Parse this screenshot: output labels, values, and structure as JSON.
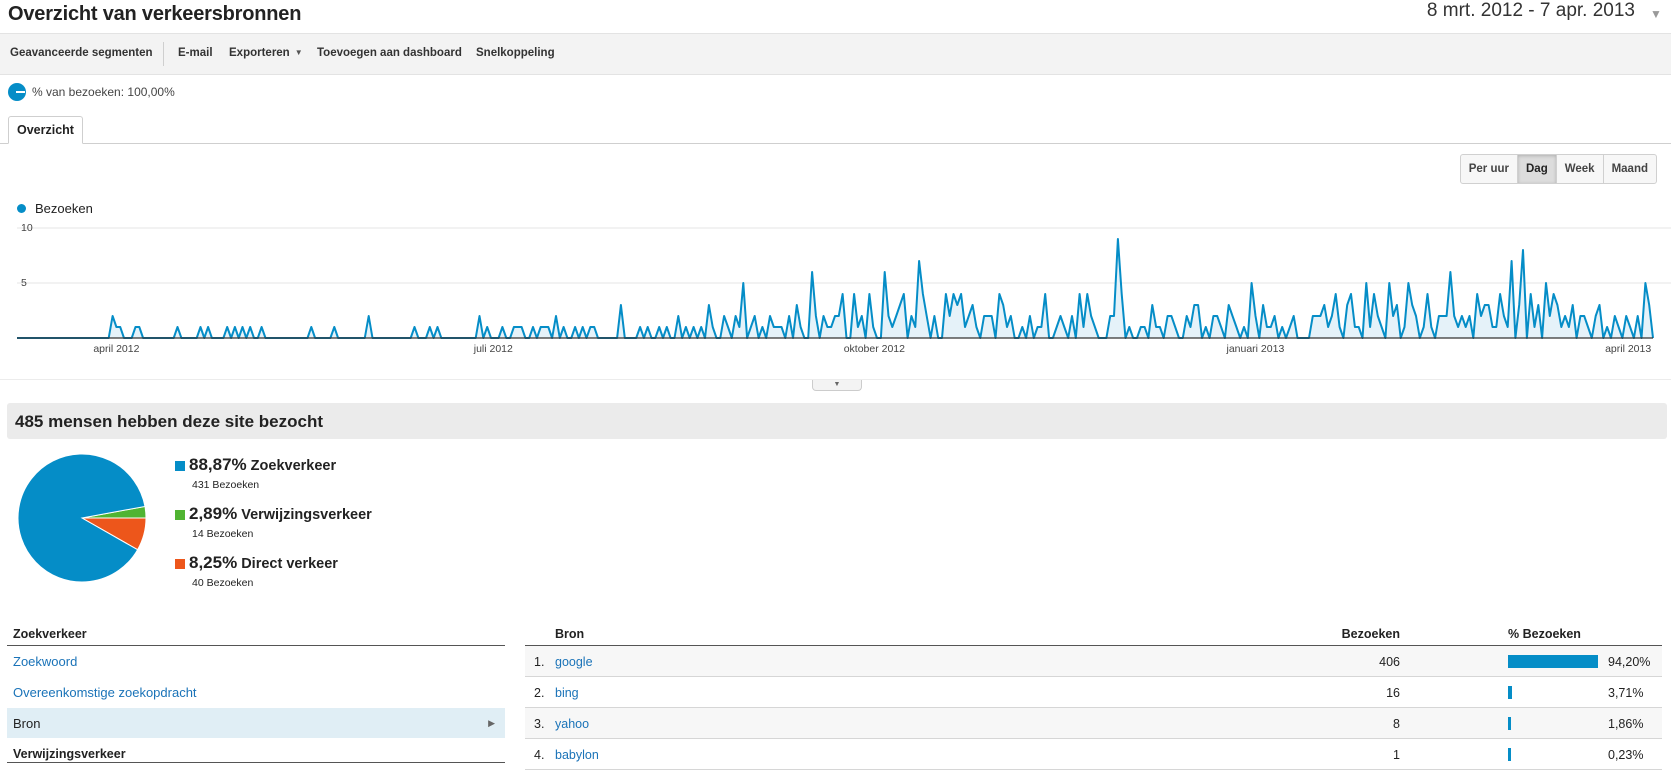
{
  "header": {
    "title": "Overzicht van verkeersbronnen",
    "date_range": "8 mrt. 2012 - 7 apr. 2013"
  },
  "toolbar": {
    "advanced_segments": "Geavanceerde segmenten",
    "email": "E-mail",
    "export": "Exporteren",
    "add_dashboard": "Toevoegen aan dashboard",
    "shortcut": "Snelkoppeling"
  },
  "segment": {
    "label": "% van bezoeken: 100,00%"
  },
  "tabs": {
    "overview": "Overzicht"
  },
  "granularity": {
    "options": [
      "Per uur",
      "Dag",
      "Week",
      "Maand"
    ],
    "selected": "Dag"
  },
  "colors": {
    "series": "#058dc7",
    "search": "#058dc7",
    "referral": "#50b432",
    "direct": "#ed561b"
  },
  "chart_data": {
    "type": "area",
    "series": [
      {
        "name": "Bezoeken",
        "values": [
          0,
          0,
          0,
          0,
          0,
          0,
          0,
          0,
          0,
          0,
          0,
          0,
          0,
          0,
          0,
          0,
          0,
          0,
          0,
          0,
          0,
          0,
          0,
          0,
          0,
          2,
          1,
          1,
          0,
          0,
          0,
          1,
          1,
          0,
          0,
          0,
          0,
          0,
          0,
          0,
          0,
          0,
          1,
          0,
          0,
          0,
          0,
          0,
          1,
          0,
          1,
          0,
          0,
          0,
          0,
          1,
          0,
          1,
          0,
          1,
          0,
          1,
          0,
          0,
          1,
          0,
          0,
          0,
          0,
          0,
          0,
          0,
          0,
          0,
          0,
          0,
          0,
          1,
          0,
          0,
          0,
          0,
          0,
          1,
          0,
          0,
          0,
          0,
          0,
          0,
          0,
          0,
          2,
          0,
          0,
          0,
          0,
          0,
          0,
          0,
          0,
          0,
          0,
          0,
          1,
          0,
          0,
          0,
          1,
          0,
          1,
          0,
          0,
          0,
          0,
          0,
          0,
          0,
          0,
          0,
          0,
          2,
          0,
          1,
          0,
          0,
          0,
          1,
          0,
          0,
          1,
          1,
          1,
          0,
          0,
          1,
          0,
          1,
          1,
          1,
          0,
          2,
          0,
          1,
          0,
          0,
          1,
          0,
          1,
          0,
          1,
          1,
          0,
          0,
          0,
          0,
          0,
          0,
          3,
          0,
          0,
          0,
          0,
          1,
          0,
          1,
          0,
          0,
          1,
          0,
          1,
          0,
          0,
          2,
          0,
          1,
          0,
          1,
          0,
          1,
          0,
          3,
          1,
          0,
          0,
          2,
          1,
          0,
          2,
          1,
          5,
          0,
          1,
          2,
          0,
          1,
          0,
          2,
          1,
          1,
          1,
          0,
          2,
          0,
          3,
          1,
          0,
          0,
          6,
          2,
          0,
          2,
          1,
          1,
          2,
          2,
          4,
          0,
          0,
          4,
          1,
          2,
          0,
          4,
          1,
          0,
          0,
          6,
          2,
          1,
          2,
          3,
          4,
          0,
          2,
          1,
          7,
          4,
          2,
          0,
          2,
          0,
          0,
          4,
          2,
          4,
          3,
          4,
          1,
          2,
          3,
          1,
          0,
          2,
          2,
          2,
          0,
          4,
          3,
          1,
          2,
          0,
          0,
          1,
          0,
          2,
          0,
          1,
          1,
          4,
          0,
          0,
          1,
          2,
          1,
          0,
          2,
          0,
          4,
          1,
          4,
          2,
          1,
          0,
          0,
          0,
          2,
          2,
          9,
          4,
          0,
          1,
          0,
          0,
          1,
          1,
          0,
          3,
          1,
          1,
          0,
          2,
          2,
          1,
          0,
          0,
          2,
          1,
          3,
          3,
          0,
          1,
          0,
          2,
          2,
          1,
          0,
          3,
          2,
          1,
          0,
          1,
          0,
          5,
          2,
          0,
          3,
          1,
          1,
          2,
          0,
          1,
          0,
          1,
          2,
          0,
          0,
          0,
          0,
          2,
          2,
          2,
          3,
          1,
          2,
          4,
          1,
          0,
          3,
          4,
          1,
          1,
          0,
          5,
          1,
          4,
          2,
          1,
          0,
          5,
          2,
          3,
          0,
          1,
          5,
          3,
          2,
          0,
          1,
          4,
          1,
          0,
          2,
          2,
          2,
          6,
          2,
          1,
          2,
          1,
          2,
          0,
          4,
          2,
          3,
          3,
          1,
          1,
          4,
          2,
          1,
          7,
          0,
          3,
          8,
          0,
          4,
          1,
          3,
          0,
          5,
          2,
          4,
          3,
          1,
          2,
          1,
          3,
          0,
          2,
          2,
          1,
          0,
          2,
          3,
          0,
          1,
          0,
          2,
          1,
          0,
          2,
          1,
          0,
          2,
          0,
          5,
          3,
          0
        ]
      }
    ],
    "x_range": [
      "2012-03-08",
      "2013-04-07"
    ],
    "x_tick_labels": [
      "april 2012",
      "juli 2012",
      "oktober 2012",
      "januari 2013",
      "april 2013"
    ],
    "y_ticks": [
      "10",
      "5"
    ],
    "ylim": [
      0,
      10
    ],
    "grid": true,
    "legend": "top-left"
  },
  "summary": {
    "title": "485 mensen hebben deze site bezocht",
    "segments": [
      {
        "pct": "88,87%",
        "name": "Zoekverkeer",
        "sub": "431 Bezoeken",
        "value": 88.87
      },
      {
        "pct": "2,89%",
        "name": "Verwijzingsverkeer",
        "sub": "14 Bezoeken",
        "value": 2.89
      },
      {
        "pct": "8,25%",
        "name": "Direct verkeer",
        "sub": "40 Bezoeken",
        "value": 8.25
      }
    ]
  },
  "left_table": {
    "header": "Zoekverkeer",
    "items": [
      "Zoekwoord",
      "Overeenkomstige zoekopdracht",
      "Bron"
    ],
    "selected": "Bron",
    "header2": "Verwijzingsverkeer"
  },
  "right_table": {
    "col_source": "Bron",
    "col_visits": "Bezoeken",
    "col_pct": "% Bezoeken",
    "rows": [
      {
        "idx": "1.",
        "source": "google",
        "visits": "406",
        "pct": "94,20%",
        "fraction": 0.942
      },
      {
        "idx": "2.",
        "source": "bing",
        "visits": "16",
        "pct": "3,71%",
        "fraction": 0.0371
      },
      {
        "idx": "3.",
        "source": "yahoo",
        "visits": "8",
        "pct": "1,86%",
        "fraction": 0.0186
      },
      {
        "idx": "4.",
        "source": "babylon",
        "visits": "1",
        "pct": "0,23%",
        "fraction": 0.0023
      }
    ]
  }
}
